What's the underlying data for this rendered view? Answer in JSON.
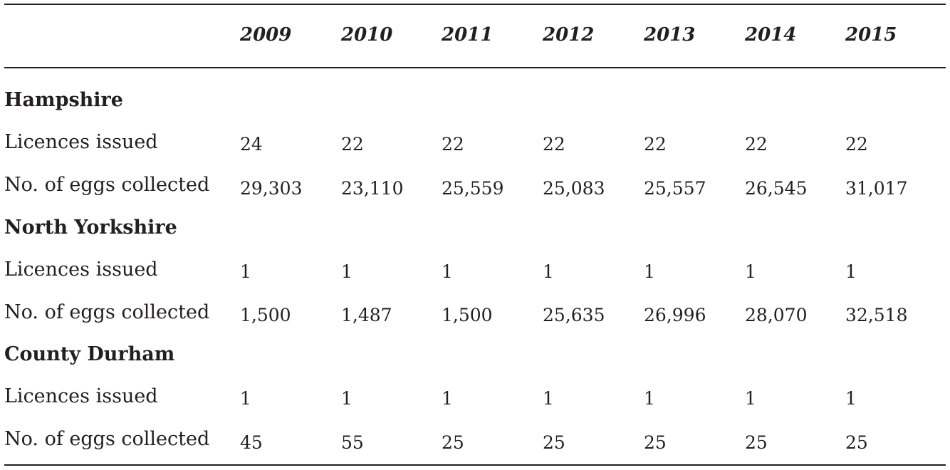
{
  "years": [
    "2009",
    "2010",
    "2011",
    "2012",
    "2013",
    "2014",
    "2015"
  ],
  "regions": [
    {
      "name": "Hampshire",
      "rows": [
        {
          "label": "Licences issued",
          "values": [
            "24",
            "22",
            "22",
            "22",
            "22",
            "22",
            "22"
          ]
        },
        {
          "label": "No. of eggs collected",
          "values": [
            "29,303",
            "23,110",
            "25,559",
            "25,083",
            "25,557",
            "26,545",
            "31,017"
          ]
        }
      ]
    },
    {
      "name": "North Yorkshire",
      "rows": [
        {
          "label": "Licences issued",
          "values": [
            "1",
            "1",
            "1",
            "1",
            "1",
            "1",
            "1"
          ]
        },
        {
          "label": "No. of eggs collected",
          "values": [
            "1,500",
            "1,487",
            "1,500",
            "25,635",
            "26,996",
            "28,070",
            "32,518"
          ]
        }
      ]
    },
    {
      "name": "County Durham",
      "rows": [
        {
          "label": "Licences issued",
          "values": [
            "1",
            "1",
            "1",
            "1",
            "1",
            "1",
            "1"
          ]
        },
        {
          "label": "No. of eggs collected",
          "values": [
            "45",
            "55",
            "25",
            "25",
            "25",
            "25",
            "25"
          ]
        }
      ]
    }
  ]
}
